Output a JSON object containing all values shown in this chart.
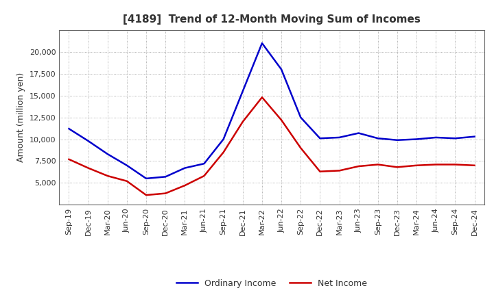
{
  "title": "[4189]  Trend of 12-Month Moving Sum of Incomes",
  "ylabel": "Amount (million yen)",
  "background_color": "#ffffff",
  "grid_color": "#999999",
  "x_labels": [
    "Sep-19",
    "Dec-19",
    "Mar-20",
    "Jun-20",
    "Sep-20",
    "Dec-20",
    "Mar-21",
    "Jun-21",
    "Sep-21",
    "Dec-21",
    "Mar-22",
    "Jun-22",
    "Sep-22",
    "Dec-22",
    "Mar-23",
    "Jun-23",
    "Sep-23",
    "Dec-23",
    "Mar-24",
    "Jun-24",
    "Sep-24",
    "Dec-24"
  ],
  "ordinary_income": [
    11200,
    9800,
    8300,
    7000,
    5500,
    5700,
    6700,
    7200,
    10000,
    15500,
    21000,
    18000,
    12500,
    10100,
    10200,
    10700,
    10100,
    9900,
    10000,
    10200,
    10100,
    10300
  ],
  "net_income": [
    7700,
    6700,
    5800,
    5200,
    3600,
    3800,
    4700,
    5800,
    8500,
    12000,
    14800,
    12200,
    9000,
    6300,
    6400,
    6900,
    7100,
    6800,
    7000,
    7100,
    7100,
    7000
  ],
  "ordinary_color": "#0000cc",
  "net_color": "#cc0000",
  "ylim_min": 2500,
  "ylim_max": 22500,
  "yticks": [
    5000,
    7500,
    10000,
    12500,
    15000,
    17500,
    20000
  ],
  "legend_ordinary": "Ordinary Income",
  "legend_net": "Net Income",
  "line_width": 1.8,
  "title_fontsize": 11,
  "title_color": "#333333",
  "tick_fontsize": 8,
  "ylabel_fontsize": 9
}
